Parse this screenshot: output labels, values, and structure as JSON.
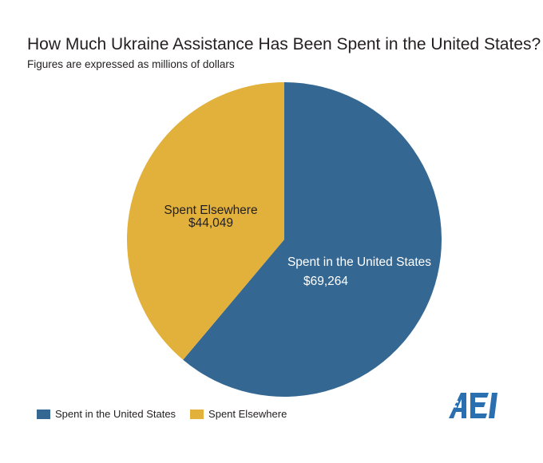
{
  "chart_data": {
    "type": "pie",
    "title": "How Much Ukraine Assistance Has Been Spent in the United States?",
    "subtitle": "Figures are expressed as millions of dollars",
    "categories": [
      "Spent in the United States",
      "Spent Elsewhere"
    ],
    "values": [
      69264,
      44049
    ],
    "value_labels": [
      "$69,264",
      "$44,049"
    ],
    "colors": [
      "#346791",
      "#e2b13c"
    ],
    "legend": {
      "position": "bottom-left",
      "entries": [
        "Spent in the United States",
        "Spent Elsewhere"
      ]
    }
  },
  "logo": {
    "text": "AEI",
    "color": "#2a6fb0"
  }
}
